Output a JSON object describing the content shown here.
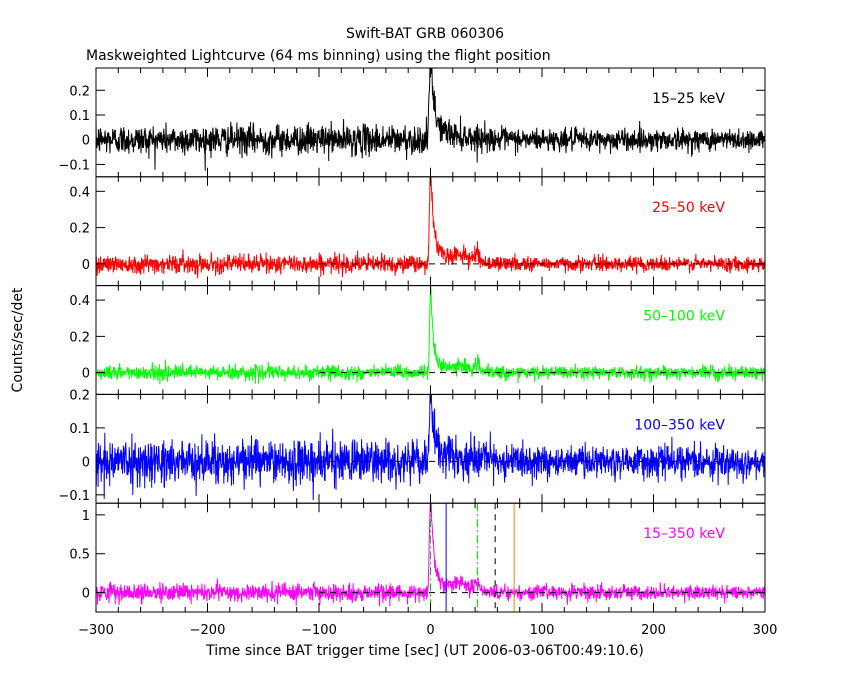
{
  "chart_data": {
    "type": "line",
    "title": "Swift-BAT GRB 060306",
    "subtitle": "Maskweighted Lightcurve (64 ms binning) using the flight position",
    "xlabel": "Time since BAT trigger time [sec] (UT 2006-03-06T00:49:10.6)",
    "ylabel": "Counts/sec/det",
    "xlim": [
      -300,
      300
    ],
    "x_ticks": [
      -300,
      -200,
      -100,
      0,
      100,
      200,
      300
    ],
    "x_tick_labels": [
      "−300",
      "−200",
      "−100",
      "0",
      "100",
      "200",
      "300"
    ],
    "binning_sec": 0.064,
    "panels": [
      {
        "label": "15–25 keV",
        "color": "#000000",
        "ylim": [
          -0.15,
          0.29
        ],
        "y_ticks": [
          -0.1,
          0,
          0.1,
          0.2
        ],
        "y_tick_labels": [
          "−0.1",
          "0",
          "0.1",
          "0.2"
        ],
        "zero_line": false,
        "data_range": [
          -300,
          300
        ],
        "noise_sigma": 0.03,
        "noise_sigma_late": 0.022,
        "pulse": {
          "t0": 0,
          "peak": 0.28,
          "rise": 1.2,
          "decay": 3.0,
          "tail_amp": 0.06,
          "tail_decay": 20
        },
        "secondary": []
      },
      {
        "label": "25–50 keV",
        "color": "#ff0000",
        "ylim": [
          -0.12,
          0.48
        ],
        "y_ticks": [
          0,
          0.2,
          0.4
        ],
        "y_tick_labels": [
          "0",
          "0.2",
          "0.4"
        ],
        "zero_line": true,
        "data_range": [
          -300,
          300
        ],
        "noise_sigma": 0.025,
        "noise_sigma_late": 0.02,
        "pulse": {
          "t0": 0,
          "peak": 0.45,
          "rise": 1.0,
          "decay": 2.5,
          "tail_amp": 0.1,
          "tail_decay": 15
        },
        "secondary": [
          {
            "t0": 28,
            "amp": 0.04,
            "width": 6
          },
          {
            "t0": 42,
            "amp": 0.06,
            "width": 2
          }
        ]
      },
      {
        "label": "50–100 keV",
        "color": "#00ff00",
        "ylim": [
          -0.12,
          0.48
        ],
        "y_ticks": [
          0,
          0.2,
          0.4
        ],
        "y_tick_labels": [
          "0",
          "0.2",
          "0.4"
        ],
        "zero_line": true,
        "data_range": [
          -300,
          300
        ],
        "noise_sigma": 0.02,
        "noise_sigma_late": 0.017,
        "pulse": {
          "t0": 0,
          "peak": 0.45,
          "rise": 0.8,
          "decay": 2.0,
          "tail_amp": 0.08,
          "tail_decay": 12
        },
        "secondary": [
          {
            "t0": 28,
            "amp": 0.035,
            "width": 6
          },
          {
            "t0": 42,
            "amp": 0.05,
            "width": 2
          }
        ]
      },
      {
        "label": "100–350 keV",
        "color": "#0000ff",
        "ylim": [
          -0.125,
          0.2
        ],
        "y_ticks": [
          -0.1,
          0,
          0.1,
          0.2
        ],
        "y_tick_labels": [
          "−0.1",
          "0",
          "0.1",
          "0.2"
        ],
        "zero_line": true,
        "data_range": [
          -300,
          300
        ],
        "noise_sigma": 0.032,
        "noise_sigma_late": 0.024,
        "pulse": {
          "t0": 0,
          "peak": 0.2,
          "rise": 1.0,
          "decay": 2.5,
          "tail_amp": 0.03,
          "tail_decay": 20
        },
        "secondary": []
      },
      {
        "label": "15–350 keV",
        "color": "#ff00ff",
        "ylim": [
          -0.25,
          1.15
        ],
        "y_ticks": [
          0,
          0.5,
          1
        ],
        "y_tick_labels": [
          "0",
          "0.5",
          "1"
        ],
        "zero_line": true,
        "data_range": [
          -300,
          300
        ],
        "noise_sigma": 0.055,
        "noise_sigma_late": 0.045,
        "pulse": {
          "t0": 0,
          "peak": 1.15,
          "rise": 1.0,
          "decay": 2.5,
          "tail_amp": 0.22,
          "tail_decay": 15
        },
        "secondary": [
          {
            "t0": 28,
            "amp": 0.1,
            "width": 6
          },
          {
            "t0": 42,
            "amp": 0.12,
            "width": 2
          }
        ],
        "markers": [
          {
            "x": 0,
            "color": "#00c000",
            "style": "dashdot"
          },
          {
            "x": 14,
            "color": "#0000ff",
            "style": "solid"
          },
          {
            "x": 42,
            "color": "#00c000",
            "style": "dashdot"
          },
          {
            "x": 58,
            "color": "#000000",
            "style": "dashed"
          },
          {
            "x": 75,
            "color": "#ff8000",
            "style": "solid"
          }
        ]
      }
    ]
  }
}
